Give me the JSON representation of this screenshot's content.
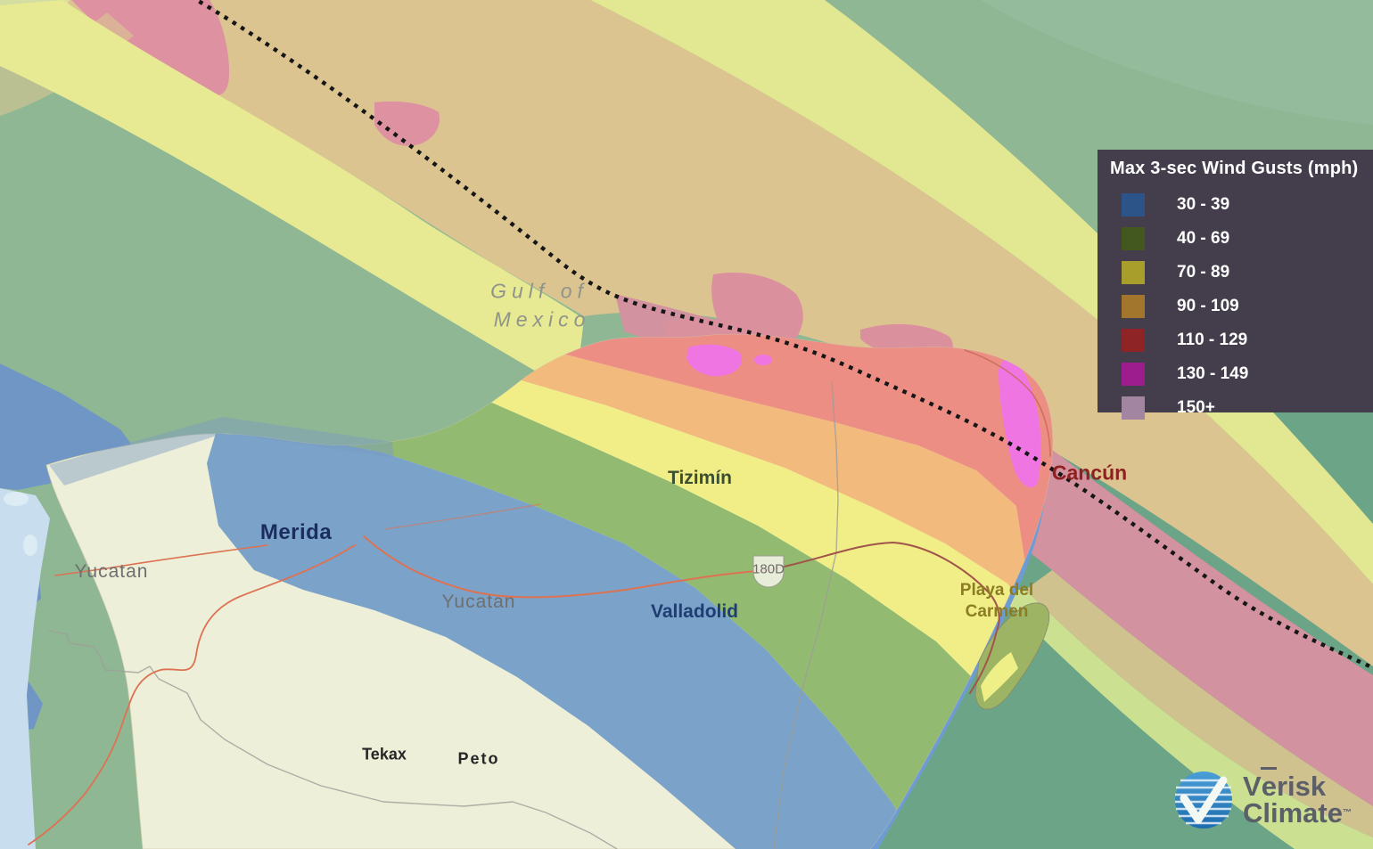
{
  "legend": {
    "title": "Max 3-sec Wind Gusts (mph)",
    "items": [
      {
        "label": "30 - 39",
        "color": "#2d5488"
      },
      {
        "label": "40 - 69",
        "color": "#42581f"
      },
      {
        "label": "70 - 89",
        "color": "#a79e2c"
      },
      {
        "label": "90 - 109",
        "color": "#a3762e"
      },
      {
        "label": "110 - 129",
        "color": "#8e2425"
      },
      {
        "label": "130 - 149",
        "color": "#9e1d8e"
      },
      {
        "label": "150+",
        "color": "#a286a1"
      }
    ]
  },
  "map_labels": {
    "gulf_line1": "Gulf of",
    "gulf_line2": "Mexico",
    "yucatan_west": "Yucatan",
    "yucatan_center": "Yucatan",
    "merida": "Merida",
    "tizimin": "Tizimín",
    "valladolid": "Valladolid",
    "cancun": "Cancún",
    "playa_line1": "Playa del",
    "playa_line2": "Carmen",
    "tekax": "Tekax",
    "peto": "Peto",
    "highway_shield": "180D"
  },
  "logo": {
    "word1_v": "V",
    "word1_e": "e",
    "word1_rest": "risk",
    "word2": "Climate",
    "tm": "™"
  },
  "colors": {
    "track": "#161616",
    "legend_bg": "#443e4c",
    "water_open": "#c8deee",
    "band_blue_water": "#6f96c4",
    "band_green_gulf": "#8fb794",
    "band_green_caribbean": "#6ba487",
    "band_yellow_water": "#e7ea93",
    "band_tan_water": "#dcc490",
    "band_pink_water": "#d292a0",
    "land_base": "#edefd9",
    "land_blue": "#7ba2c8",
    "land_green": "#93ba71",
    "land_yellow": "#f1ee88",
    "land_orange": "#f2ba7c",
    "land_red": "#ed8e85",
    "land_magenta": "#ef75e3"
  }
}
